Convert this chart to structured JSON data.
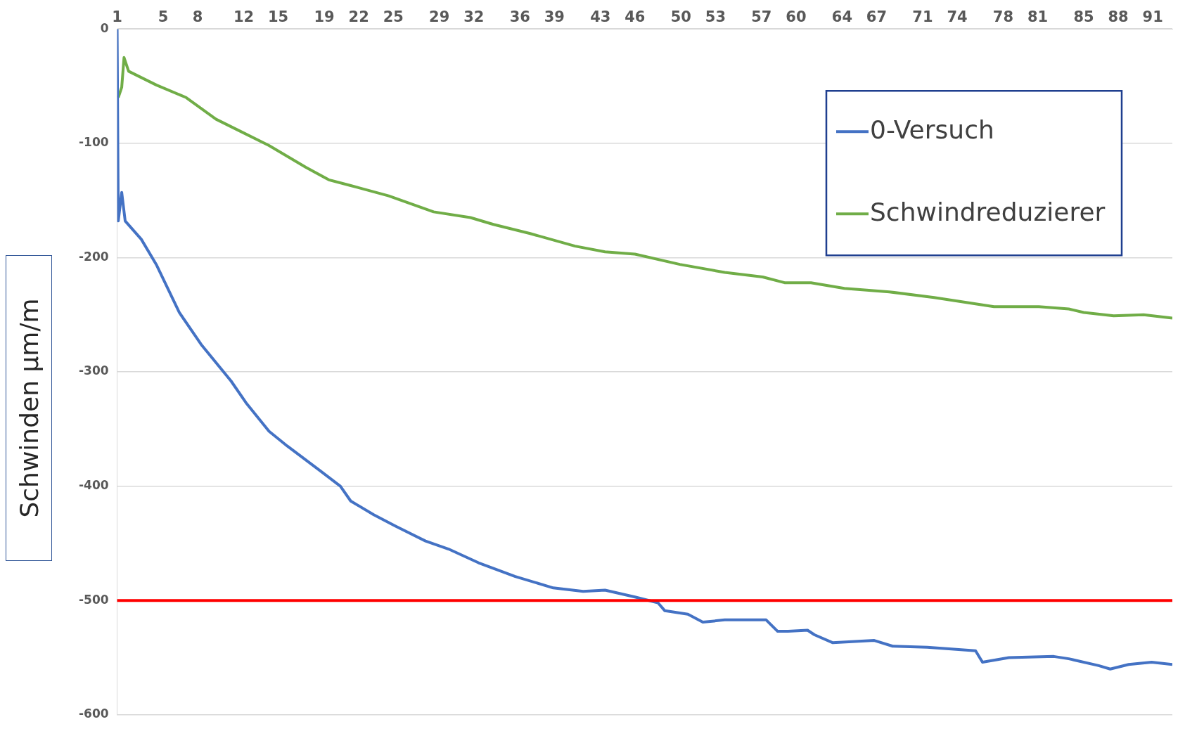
{
  "chart_data": {
    "type": "line",
    "ylabel": "Schwinden µm/m",
    "xlim": [
      1,
      92.7
    ],
    "xticks": [
      1,
      5,
      8,
      12,
      15,
      19,
      22,
      25,
      29,
      32,
      36,
      39,
      43,
      46,
      50,
      53,
      57,
      60,
      64,
      67,
      71,
      74,
      78,
      81,
      85,
      88,
      91
    ],
    "ylim": [
      -600,
      0
    ],
    "yticks": [
      -600,
      -500,
      -400,
      -300,
      -200,
      -100,
      0
    ],
    "grid": "y",
    "legend": "top right",
    "marker": "none",
    "line_style": "solid",
    "ref_lines": [
      {
        "axis": "y",
        "value": -500,
        "color": "#ff0000"
      }
    ],
    "series": [
      {
        "name": "0-Versuch",
        "color": "#4472c4",
        "x": [
          1,
          1.1,
          1.4,
          1.7,
          3.1,
          4.4,
          6.4,
          8.3,
          10.9,
          12.2,
          14.2,
          15.8,
          18.7,
          20.4,
          21.3,
          23.3,
          25.2,
          27.8,
          29.8,
          32.4,
          35.6,
          38.9,
          41.5,
          43.4,
          46.0,
          48.0,
          48.6,
          50.6,
          51.9,
          53.8,
          57.4,
          58.4,
          59.3,
          61.0,
          61.6,
          63.2,
          66.8,
          68.4,
          71.4,
          75.6,
          76.2,
          78.5,
          82.4,
          83.7,
          86.3,
          87.3,
          88.9,
          90.9,
          92.7
        ],
        "values": [
          0,
          -168,
          -143,
          -168,
          -184,
          -206,
          -248,
          -276,
          -308,
          -327,
          -352,
          -365,
          -387,
          -400,
          -413,
          -425,
          -435,
          -448,
          -455,
          -467,
          -479,
          -489,
          -492,
          -491,
          -497,
          -502,
          -509,
          -512,
          -519,
          -517,
          -517,
          -527,
          -527,
          -526,
          -530,
          -537,
          -535,
          -540,
          -541,
          -544,
          -554,
          -550,
          -549,
          -551,
          -557,
          -560,
          -556,
          -554,
          -556
        ]
      },
      {
        "name": "Schwindreduzierer",
        "color": "#70ad47",
        "x": [
          1.1,
          1.4,
          1.6,
          2.0,
          4.4,
          7.0,
          9.6,
          11.6,
          14.2,
          17.4,
          19.4,
          21.3,
          24.6,
          28.5,
          31.7,
          33.7,
          36.9,
          40.8,
          43.4,
          46.0,
          49.9,
          53.8,
          57.1,
          59.0,
          61.3,
          64.2,
          68.1,
          72.0,
          75.3,
          77.2,
          81.1,
          83.7,
          85.0,
          87.6,
          90.2,
          92.7
        ],
        "values": [
          -60,
          -51,
          -25,
          -37,
          -49,
          -60,
          -79,
          -89,
          -102,
          -121,
          -132,
          -137,
          -146,
          -160,
          -165,
          -171,
          -179,
          -190,
          -195,
          -197,
          -206,
          -213,
          -217,
          -222,
          -222,
          -227,
          -230,
          -235,
          -240,
          -243,
          -243,
          -245,
          -248,
          -251,
          -250,
          -253
        ]
      }
    ]
  }
}
